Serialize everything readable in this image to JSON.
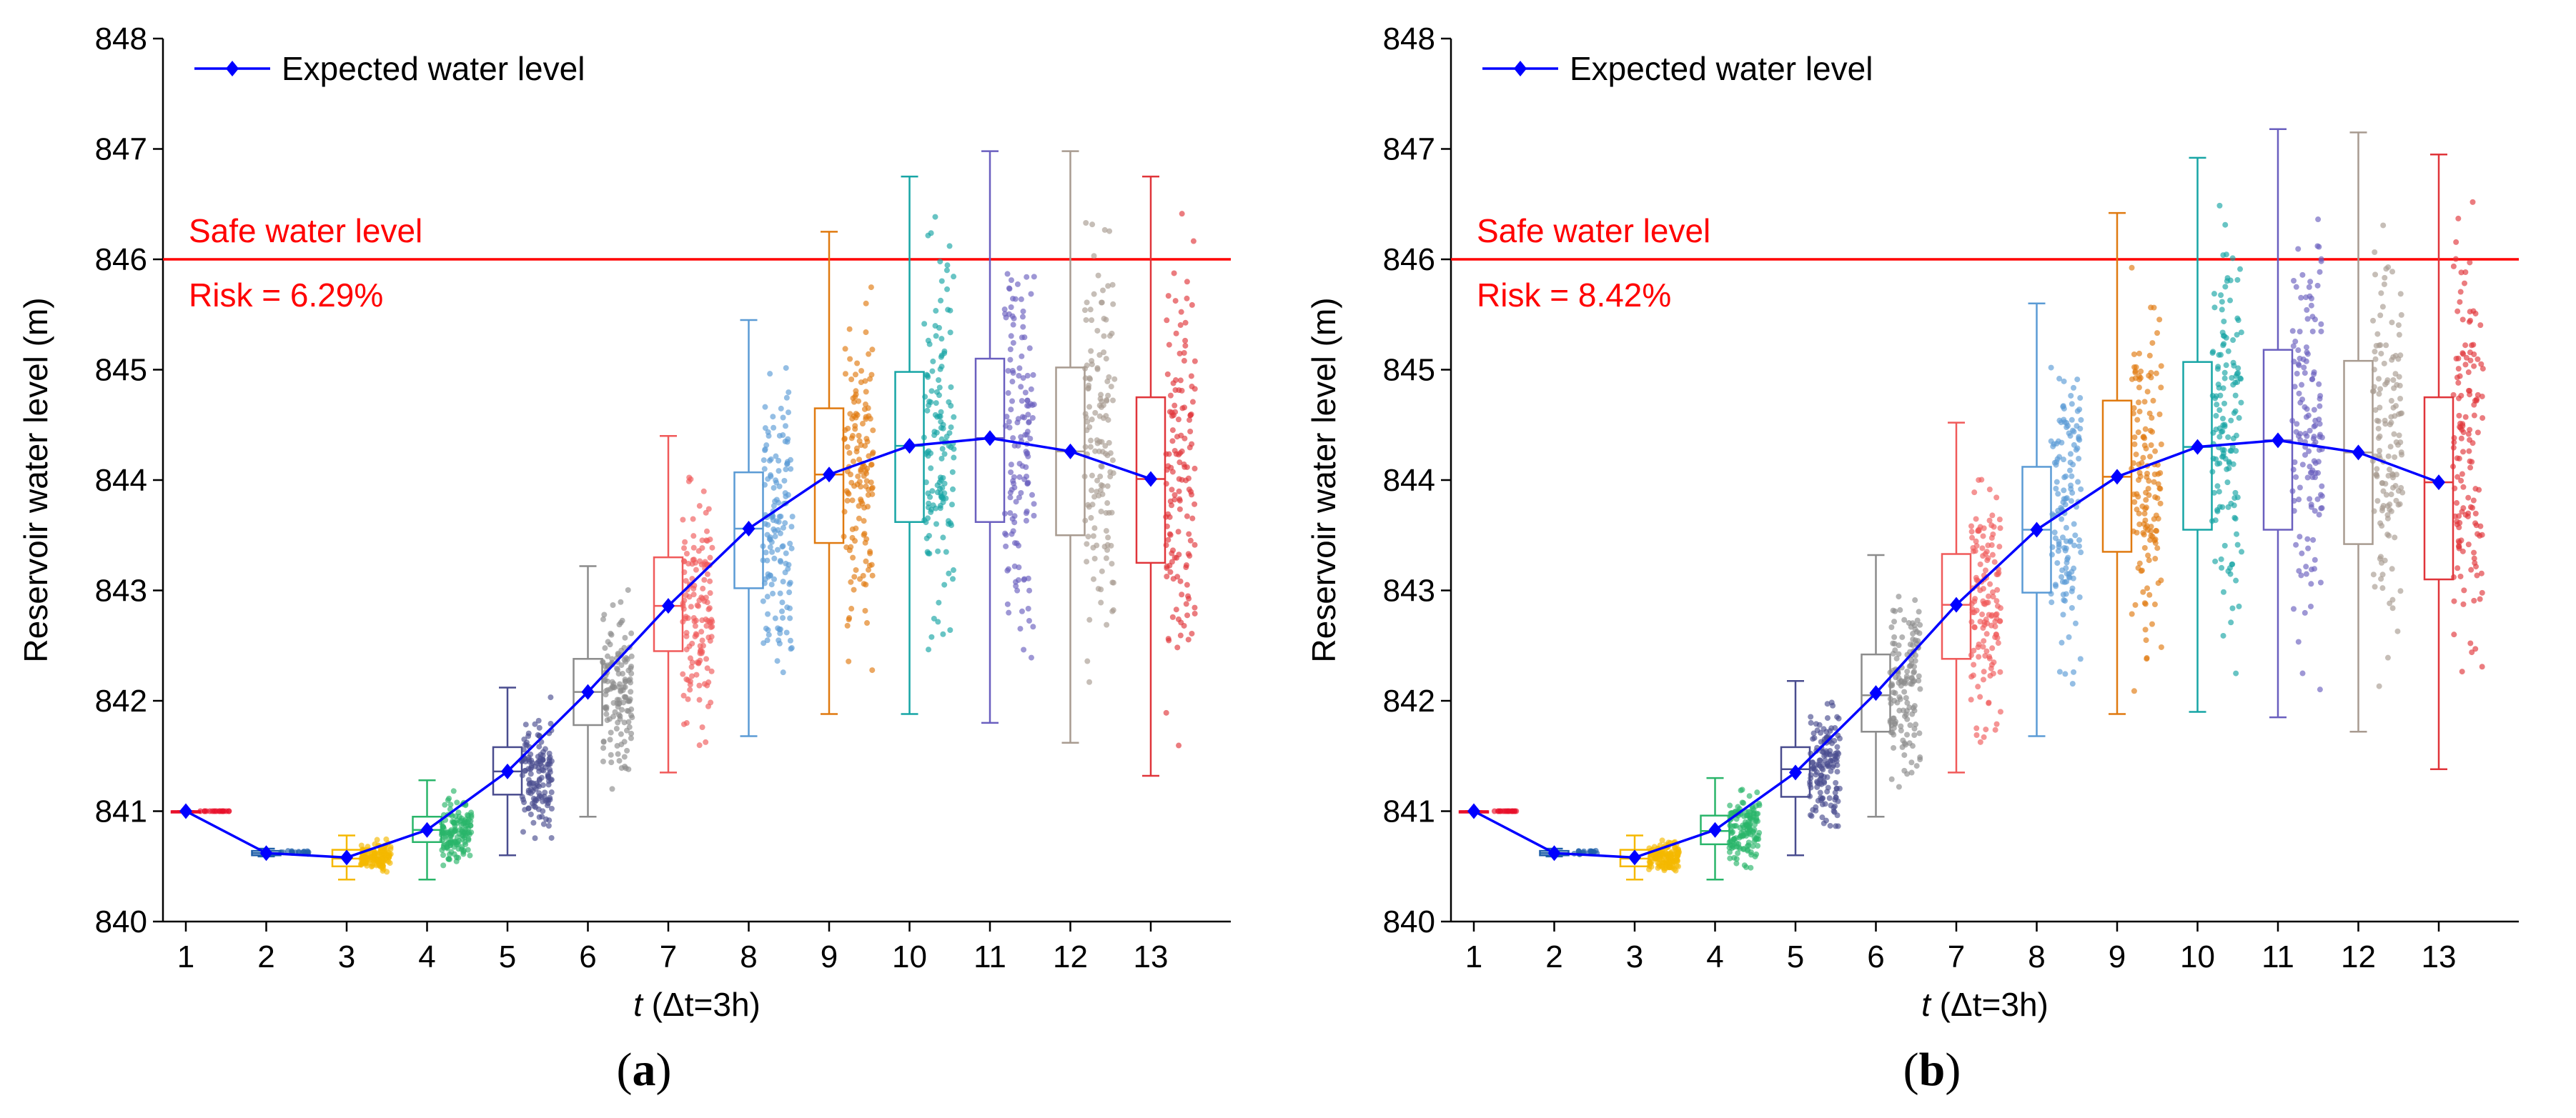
{
  "chart_data": [
    {
      "panel": "a",
      "type": "line",
      "caption": "(a)",
      "xlabel_italic": "t",
      "xlabel_rest": " (Δt=3h)",
      "ylabel": "Reservoir water level (m)",
      "x": [
        1,
        2,
        3,
        4,
        5,
        6,
        7,
        8,
        9,
        10,
        11,
        12,
        13
      ],
      "ylim": [
        840,
        848
      ],
      "yticks": [
        840,
        841,
        842,
        843,
        844,
        845,
        846,
        847,
        848
      ],
      "legend": "Expected water level",
      "series": [
        {
          "name": "Expected water level",
          "values": [
            841.0,
            840.62,
            840.58,
            840.83,
            841.36,
            842.08,
            842.86,
            843.56,
            844.05,
            844.31,
            844.38,
            844.26,
            844.01
          ]
        }
      ],
      "safe_level": 846,
      "safe_label": "Safe water level",
      "risk_label": "Risk = 6.29%",
      "boxes": [
        {
          "x": 1,
          "min": 841.0,
          "q1": 841.0,
          "median": 841.0,
          "q3": 841.0,
          "max": 841.0,
          "color": "#e8102a"
        },
        {
          "x": 2,
          "min": 840.59,
          "q1": 840.6,
          "median": 840.62,
          "q3": 840.64,
          "max": 840.66,
          "color": "#1f5fa8"
        },
        {
          "x": 3,
          "min": 840.38,
          "q1": 840.5,
          "median": 840.57,
          "q3": 840.65,
          "max": 840.78,
          "color": "#f5b800"
        },
        {
          "x": 4,
          "min": 840.38,
          "q1": 840.72,
          "median": 840.83,
          "q3": 840.95,
          "max": 841.28,
          "color": "#2ab56a"
        },
        {
          "x": 5,
          "min": 840.6,
          "q1": 841.15,
          "median": 841.36,
          "q3": 841.58,
          "max": 842.12,
          "color": "#4a4d8f"
        },
        {
          "x": 6,
          "min": 840.95,
          "q1": 841.78,
          "median": 842.08,
          "q3": 842.38,
          "max": 843.22,
          "color": "#8c8c8c"
        },
        {
          "x": 7,
          "min": 841.35,
          "q1": 842.45,
          "median": 842.86,
          "q3": 843.3,
          "max": 844.4,
          "color": "#f05a5a"
        },
        {
          "x": 8,
          "min": 841.68,
          "q1": 843.02,
          "median": 843.56,
          "q3": 844.07,
          "max": 845.45,
          "color": "#5b9bd5"
        },
        {
          "x": 9,
          "min": 841.88,
          "q1": 843.43,
          "median": 844.05,
          "q3": 844.65,
          "max": 846.25,
          "color": "#e07a10"
        },
        {
          "x": 10,
          "min": 841.88,
          "q1": 843.62,
          "median": 844.31,
          "q3": 844.98,
          "max": 846.75,
          "color": "#17a5a5"
        },
        {
          "x": 11,
          "min": 841.8,
          "q1": 843.62,
          "median": 844.38,
          "q3": 845.1,
          "max": 846.98,
          "color": "#6a5fbf"
        },
        {
          "x": 12,
          "min": 841.62,
          "q1": 843.5,
          "median": 844.26,
          "q3": 845.02,
          "max": 846.98,
          "color": "#a89b90"
        },
        {
          "x": 13,
          "min": 841.32,
          "q1": 843.25,
          "median": 844.01,
          "q3": 844.75,
          "max": 846.75,
          "color": "#e0353a"
        }
      ]
    },
    {
      "panel": "b",
      "type": "line",
      "caption": "(b)",
      "xlabel_italic": "t",
      "xlabel_rest": " (Δt=3h)",
      "ylabel": "Reservoir water level (m)",
      "x": [
        1,
        2,
        3,
        4,
        5,
        6,
        7,
        8,
        9,
        10,
        11,
        12,
        13
      ],
      "ylim": [
        840,
        848
      ],
      "yticks": [
        840,
        841,
        842,
        843,
        844,
        845,
        846,
        847,
        848
      ],
      "legend": "Expected water level",
      "series": [
        {
          "name": "Expected water level",
          "values": [
            841.0,
            840.62,
            840.58,
            840.83,
            841.35,
            842.07,
            842.87,
            843.55,
            844.03,
            844.3,
            844.36,
            844.25,
            843.98
          ]
        }
      ],
      "safe_level": 846,
      "safe_label": "Safe water level",
      "risk_label": "Risk = 8.42%",
      "boxes": [
        {
          "x": 1,
          "min": 841.0,
          "q1": 841.0,
          "median": 841.0,
          "q3": 841.0,
          "max": 841.0,
          "color": "#e8102a"
        },
        {
          "x": 2,
          "min": 840.59,
          "q1": 840.6,
          "median": 840.62,
          "q3": 840.64,
          "max": 840.66,
          "color": "#1f5fa8"
        },
        {
          "x": 3,
          "min": 840.38,
          "q1": 840.5,
          "median": 840.57,
          "q3": 840.65,
          "max": 840.78,
          "color": "#f5b800"
        },
        {
          "x": 4,
          "min": 840.38,
          "q1": 840.7,
          "median": 840.82,
          "q3": 840.96,
          "max": 841.3,
          "color": "#2ab56a"
        },
        {
          "x": 5,
          "min": 840.6,
          "q1": 841.13,
          "median": 841.38,
          "q3": 841.58,
          "max": 842.18,
          "color": "#4a4d8f"
        },
        {
          "x": 6,
          "min": 840.95,
          "q1": 841.72,
          "median": 842.05,
          "q3": 842.42,
          "max": 843.32,
          "color": "#8c8c8c"
        },
        {
          "x": 7,
          "min": 841.35,
          "q1": 842.38,
          "median": 842.87,
          "q3": 843.33,
          "max": 844.52,
          "color": "#f05a5a"
        },
        {
          "x": 8,
          "min": 841.68,
          "q1": 842.98,
          "median": 843.55,
          "q3": 844.12,
          "max": 845.6,
          "color": "#5b9bd5"
        },
        {
          "x": 9,
          "min": 841.88,
          "q1": 843.35,
          "median": 844.03,
          "q3": 844.72,
          "max": 846.42,
          "color": "#e07a10"
        },
        {
          "x": 10,
          "min": 841.9,
          "q1": 843.55,
          "median": 844.3,
          "q3": 845.07,
          "max": 846.92,
          "color": "#17a5a5"
        },
        {
          "x": 11,
          "min": 841.85,
          "q1": 843.55,
          "median": 844.36,
          "q3": 845.18,
          "max": 847.18,
          "color": "#6a5fbf"
        },
        {
          "x": 12,
          "min": 841.72,
          "q1": 843.42,
          "median": 844.25,
          "q3": 845.08,
          "max": 847.15,
          "color": "#a89b90"
        },
        {
          "x": 13,
          "min": 841.38,
          "q1": 843.1,
          "median": 843.98,
          "q3": 844.75,
          "max": 846.95,
          "color": "#e0353a"
        }
      ]
    }
  ],
  "colors": {
    "line": "#0000ff",
    "safe": "#ff0000"
  }
}
